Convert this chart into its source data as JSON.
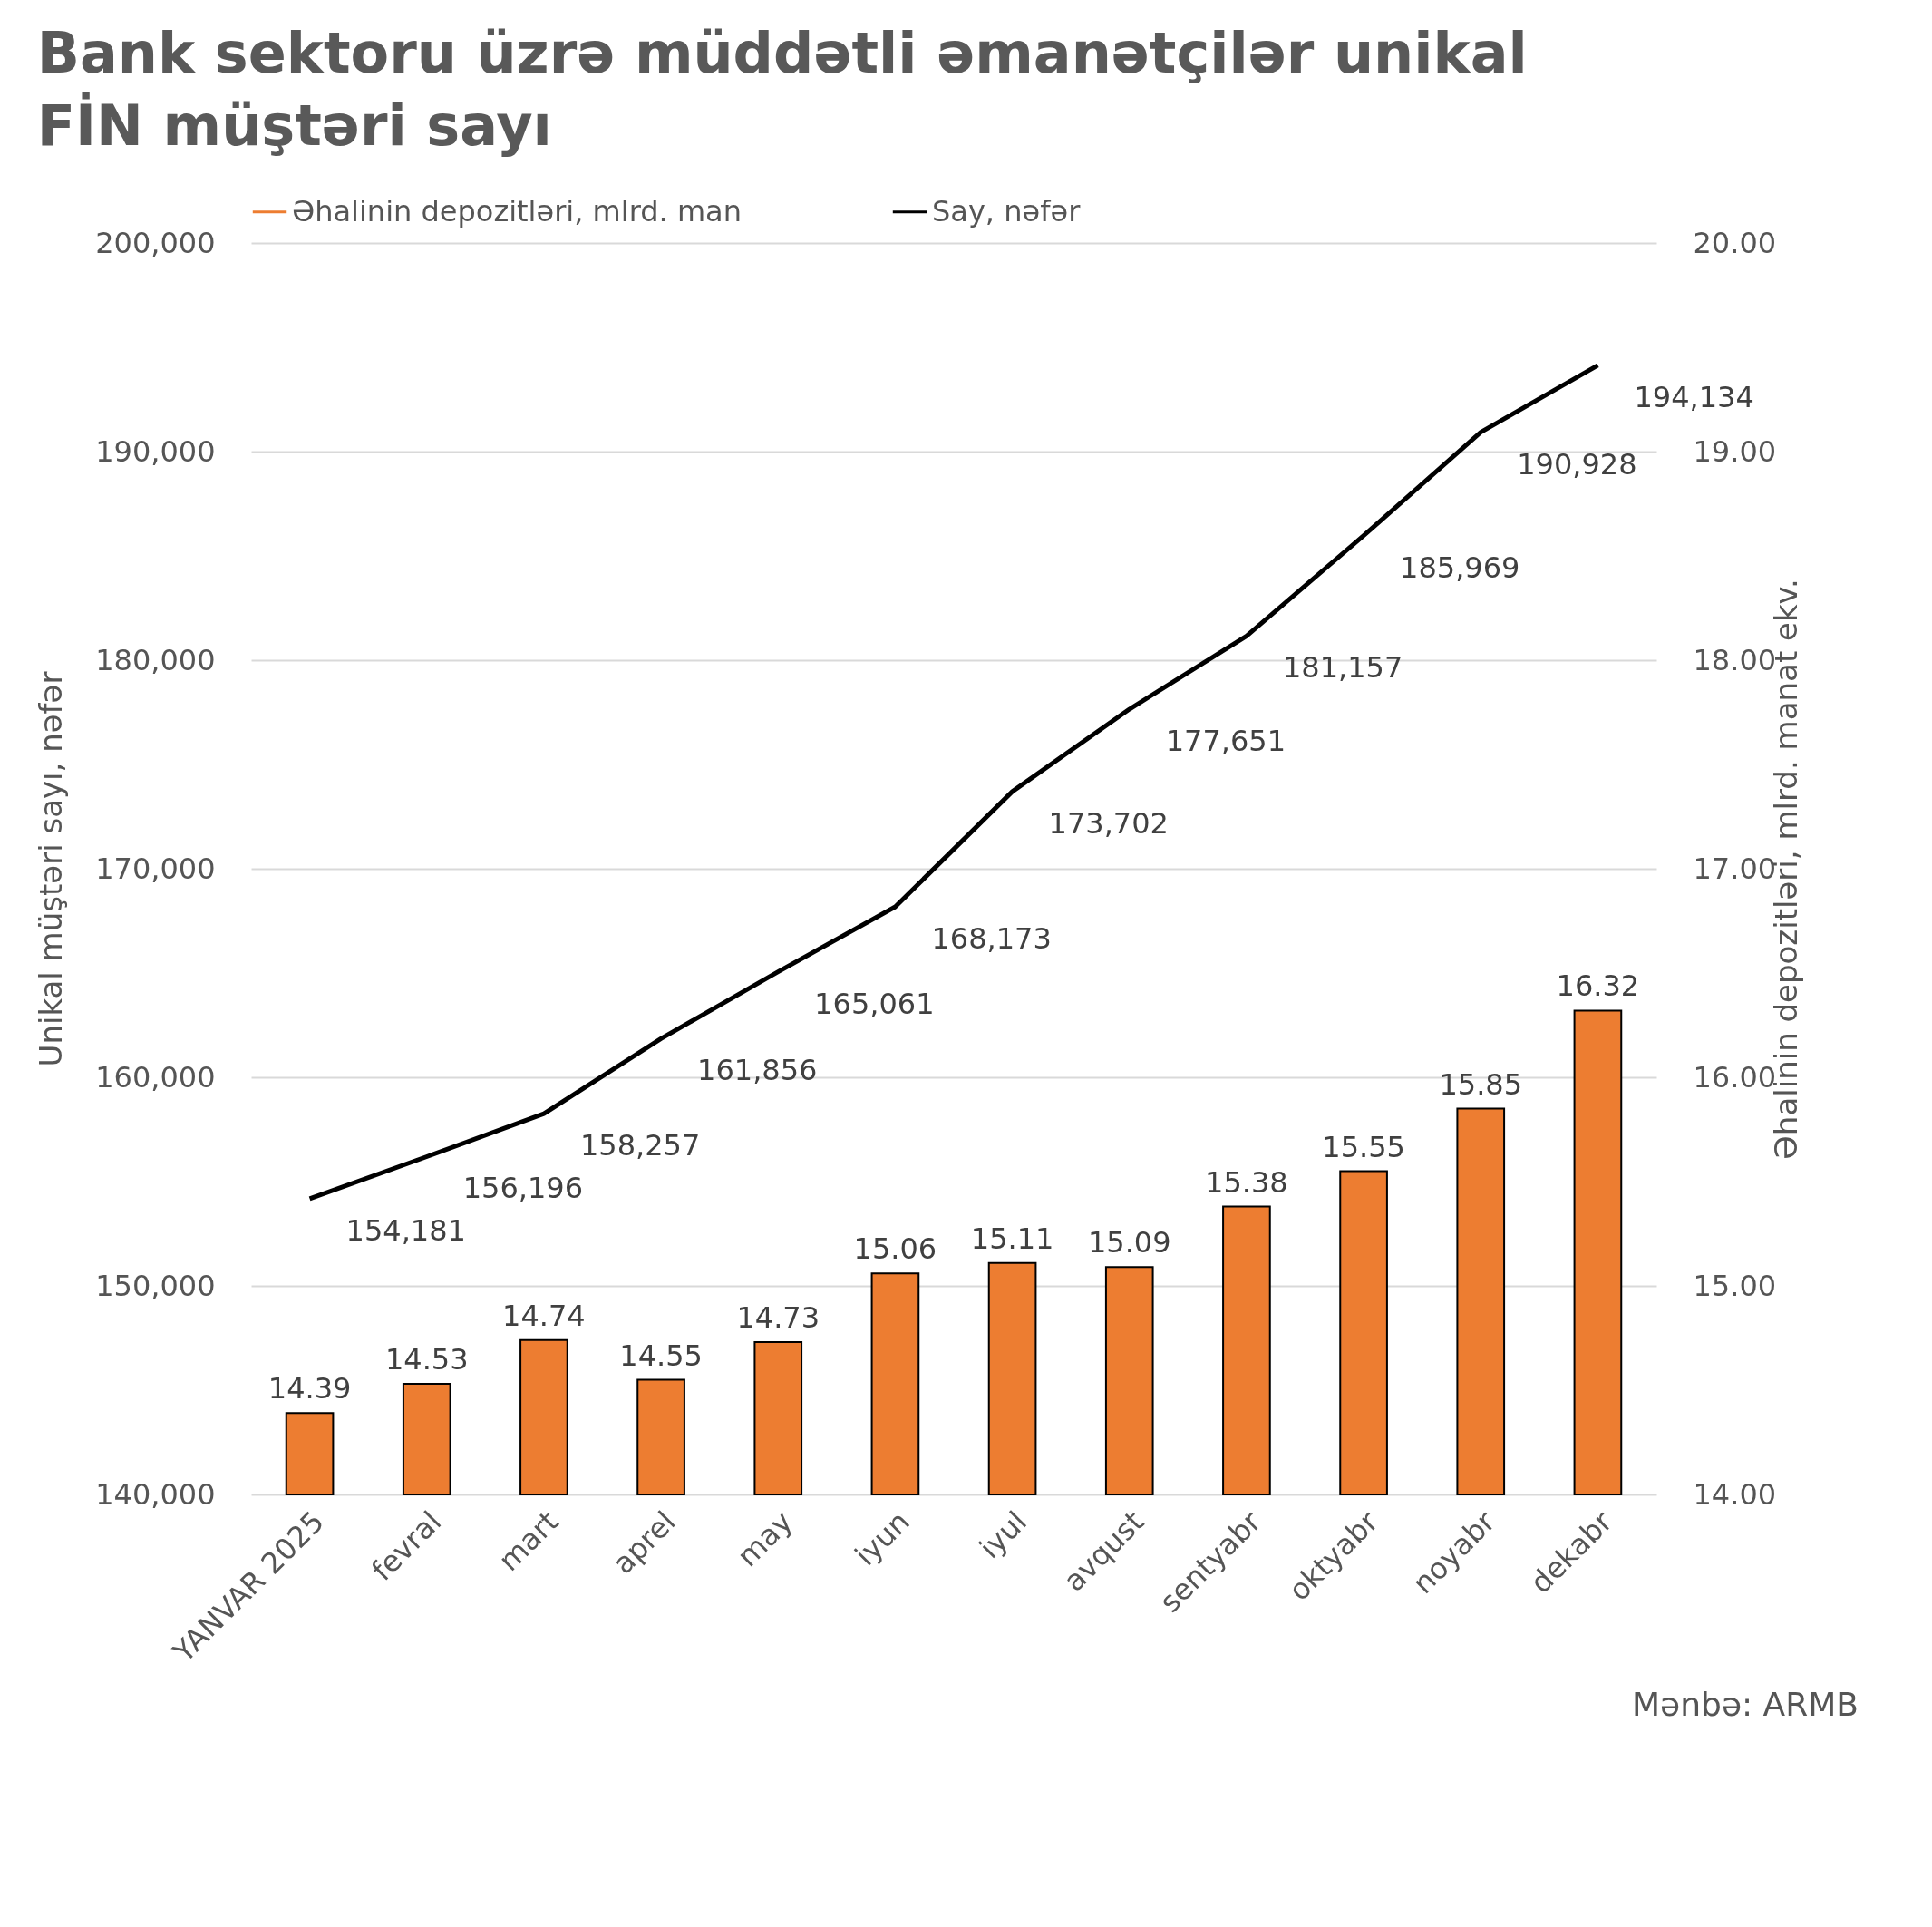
{
  "chart_data": {
    "type": "bar",
    "title": "Bank sektoru üzrə müddətli əmanətçilər unikal FİN müştəri sayı",
    "ylabel": "Unikal müştəri sayı, nəfər",
    "y2label": "Əhalinin depozitləri, mlrd. manat ekv.",
    "categories": [
      "YANVAR 2025",
      "fevral",
      "mart",
      "aprel",
      "may",
      "iyun",
      "iyul",
      "avqust",
      "sentyabr",
      "oktyabr",
      "noyabr",
      "dekabr"
    ],
    "series": [
      {
        "name": "Əhalinin depozitləri, mlrd. man",
        "axis": "y2",
        "color": "#ed7d31",
        "values": [
          14.39,
          14.53,
          14.74,
          14.55,
          14.73,
          15.06,
          15.11,
          15.09,
          15.38,
          15.55,
          15.85,
          16.32
        ],
        "value_labels": [
          "14.39",
          "14.53",
          "14.74",
          "14.55",
          "14.73",
          "15.06",
          "15.11",
          "15.09",
          "15.38",
          "15.55",
          "15.85",
          "16.32"
        ]
      },
      {
        "name": "Say, nəfər",
        "type": "line",
        "color": "#000000",
        "values": [
          154181,
          156196,
          158257,
          161856,
          165061,
          168173,
          173702,
          177651,
          181157,
          185969,
          190928,
          194134
        ],
        "value_labels": [
          "154,181",
          "156,196",
          "158,257",
          "161,856",
          "165,061",
          "168,173",
          "173,702",
          "177,651",
          "181,157",
          "185,969",
          "190,928",
          "194,134"
        ]
      }
    ],
    "ylim": [
      140000,
      200000
    ],
    "yticks": [
      {
        "value": 140000,
        "label": "140,000"
      },
      {
        "value": 150000,
        "label": "150,000"
      },
      {
        "value": 160000,
        "label": "160,000"
      },
      {
        "value": 170000,
        "label": "170,000"
      },
      {
        "value": 180000,
        "label": "180,000"
      },
      {
        "value": 190000,
        "label": "190,000"
      },
      {
        "value": 200000,
        "label": "200,000"
      }
    ],
    "y2lim": [
      14,
      20
    ],
    "y2ticks": [
      {
        "value": 14,
        "label": "14.00"
      },
      {
        "value": 15,
        "label": "15.00"
      },
      {
        "value": 16,
        "label": "16.00"
      },
      {
        "value": 17,
        "label": "17.00"
      },
      {
        "value": 18,
        "label": "18.00"
      },
      {
        "value": 19,
        "label": "19.00"
      },
      {
        "value": 20,
        "label": "20.00"
      }
    ],
    "grid": "y",
    "legend": "top",
    "marker": "none",
    "line_style": "solid",
    "annotations": [
      "Mənbə: ARMB"
    ]
  }
}
